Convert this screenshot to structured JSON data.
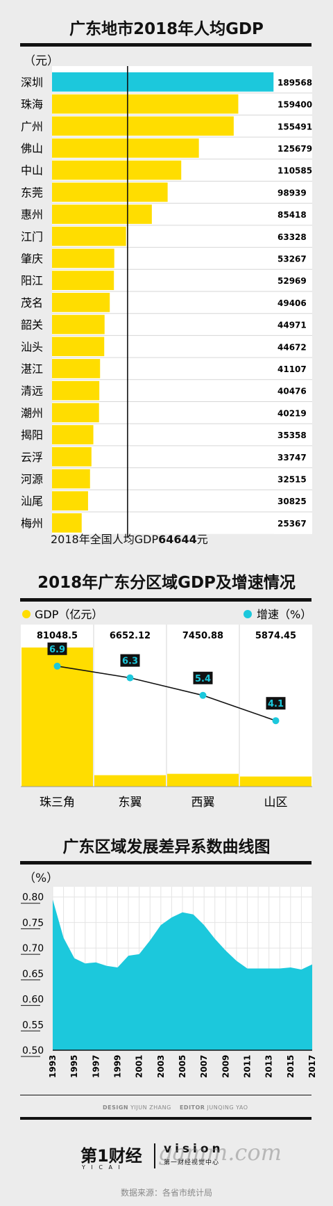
{
  "charts": {
    "per_capita": {
      "title": "广东地市2018年人均GDP",
      "unit": "（元）",
      "reference_label": "2018年全国人均GDP",
      "reference_value": "64644",
      "reference_unit": "元"
    },
    "regional": {
      "title": "2018年广东分区域GDP及增速情况",
      "legend_gdp": "GDP（亿元）",
      "legend_growth": "增速（%）"
    },
    "variation": {
      "title": "广东区域发展差异系数曲线图",
      "unit": "（%）"
    }
  },
  "credits": {
    "design_label": "DESIGN",
    "design_name": "YIJUN ZHANG",
    "editor_label": "EDITOR",
    "editor_name": "JUNQING YAO"
  },
  "footer": {
    "logo_main": "第1财经",
    "logo_sub": "Y I C A I",
    "vision": "vision",
    "vision_sub": "第一财经视觉中心",
    "source": "数据来源：各省市统计局",
    "watermark": "gamm.com"
  },
  "colors": {
    "yellow": "#ffdd00",
    "cyan": "#1cc8dc",
    "dark": "#111111",
    "background": "#ececec"
  },
  "chart_data": [
    {
      "type": "bar",
      "orientation": "horizontal",
      "title": "广东地市2018年人均GDP",
      "ylabel": "（元）",
      "categories": [
        "深圳",
        "珠海",
        "广州",
        "佛山",
        "中山",
        "东莞",
        "惠州",
        "江门",
        "肇庆",
        "阳江",
        "茂名",
        "韶关",
        "汕头",
        "湛江",
        "清远",
        "潮州",
        "揭阳",
        "云浮",
        "河源",
        "汕尾",
        "梅州"
      ],
      "values": [
        189568,
        159400,
        155491,
        125679,
        110585,
        98939,
        85418,
        63328,
        53267,
        52969,
        49406,
        44971,
        44672,
        41107,
        40476,
        40219,
        35358,
        33747,
        32515,
        30825,
        25367
      ],
      "highlight": "深圳",
      "reference_line": {
        "value": 64644,
        "label": "2018年全国人均GDP64644元"
      },
      "xlim": [
        0,
        190000
      ]
    },
    {
      "type": "bar",
      "title": "2018年广东分区域GDP及增速情况",
      "categories": [
        "珠三角",
        "东翼",
        "西翼",
        "山区"
      ],
      "series": [
        {
          "name": "GDP（亿元）",
          "type": "bar",
          "values": [
            81048.5,
            6652.12,
            7450.88,
            5874.45
          ]
        },
        {
          "name": "增速（%）",
          "type": "line",
          "values": [
            6.9,
            6.3,
            5.4,
            4.1
          ]
        }
      ],
      "legend": "top"
    },
    {
      "type": "area",
      "title": "广东区域发展差异系数曲线图",
      "ylabel": "（%）",
      "x": [
        1993,
        1994,
        1995,
        1996,
        1997,
        1998,
        1999,
        2000,
        2001,
        2002,
        2003,
        2004,
        2005,
        2006,
        2007,
        2008,
        2009,
        2010,
        2011,
        2012,
        2013,
        2014,
        2015,
        2016,
        2017
      ],
      "y": [
        0.795,
        0.72,
        0.68,
        0.67,
        0.672,
        0.665,
        0.662,
        0.685,
        0.688,
        0.715,
        0.745,
        0.76,
        0.77,
        0.766,
        0.745,
        0.718,
        0.695,
        0.675,
        0.66,
        0.66,
        0.66,
        0.66,
        0.662,
        0.658,
        0.668
      ],
      "xticks": [
        "1993",
        "1995",
        "1997",
        "1999",
        "2001",
        "2003",
        "2005",
        "2007",
        "2009",
        "2011",
        "2013",
        "2015",
        "2017"
      ],
      "yticks": [
        "0.50",
        "0.55",
        "0.60",
        "0.65",
        "0.70",
        "0.75",
        "0.80"
      ],
      "ylim": [
        0.5,
        0.82
      ],
      "grid": true
    }
  ]
}
